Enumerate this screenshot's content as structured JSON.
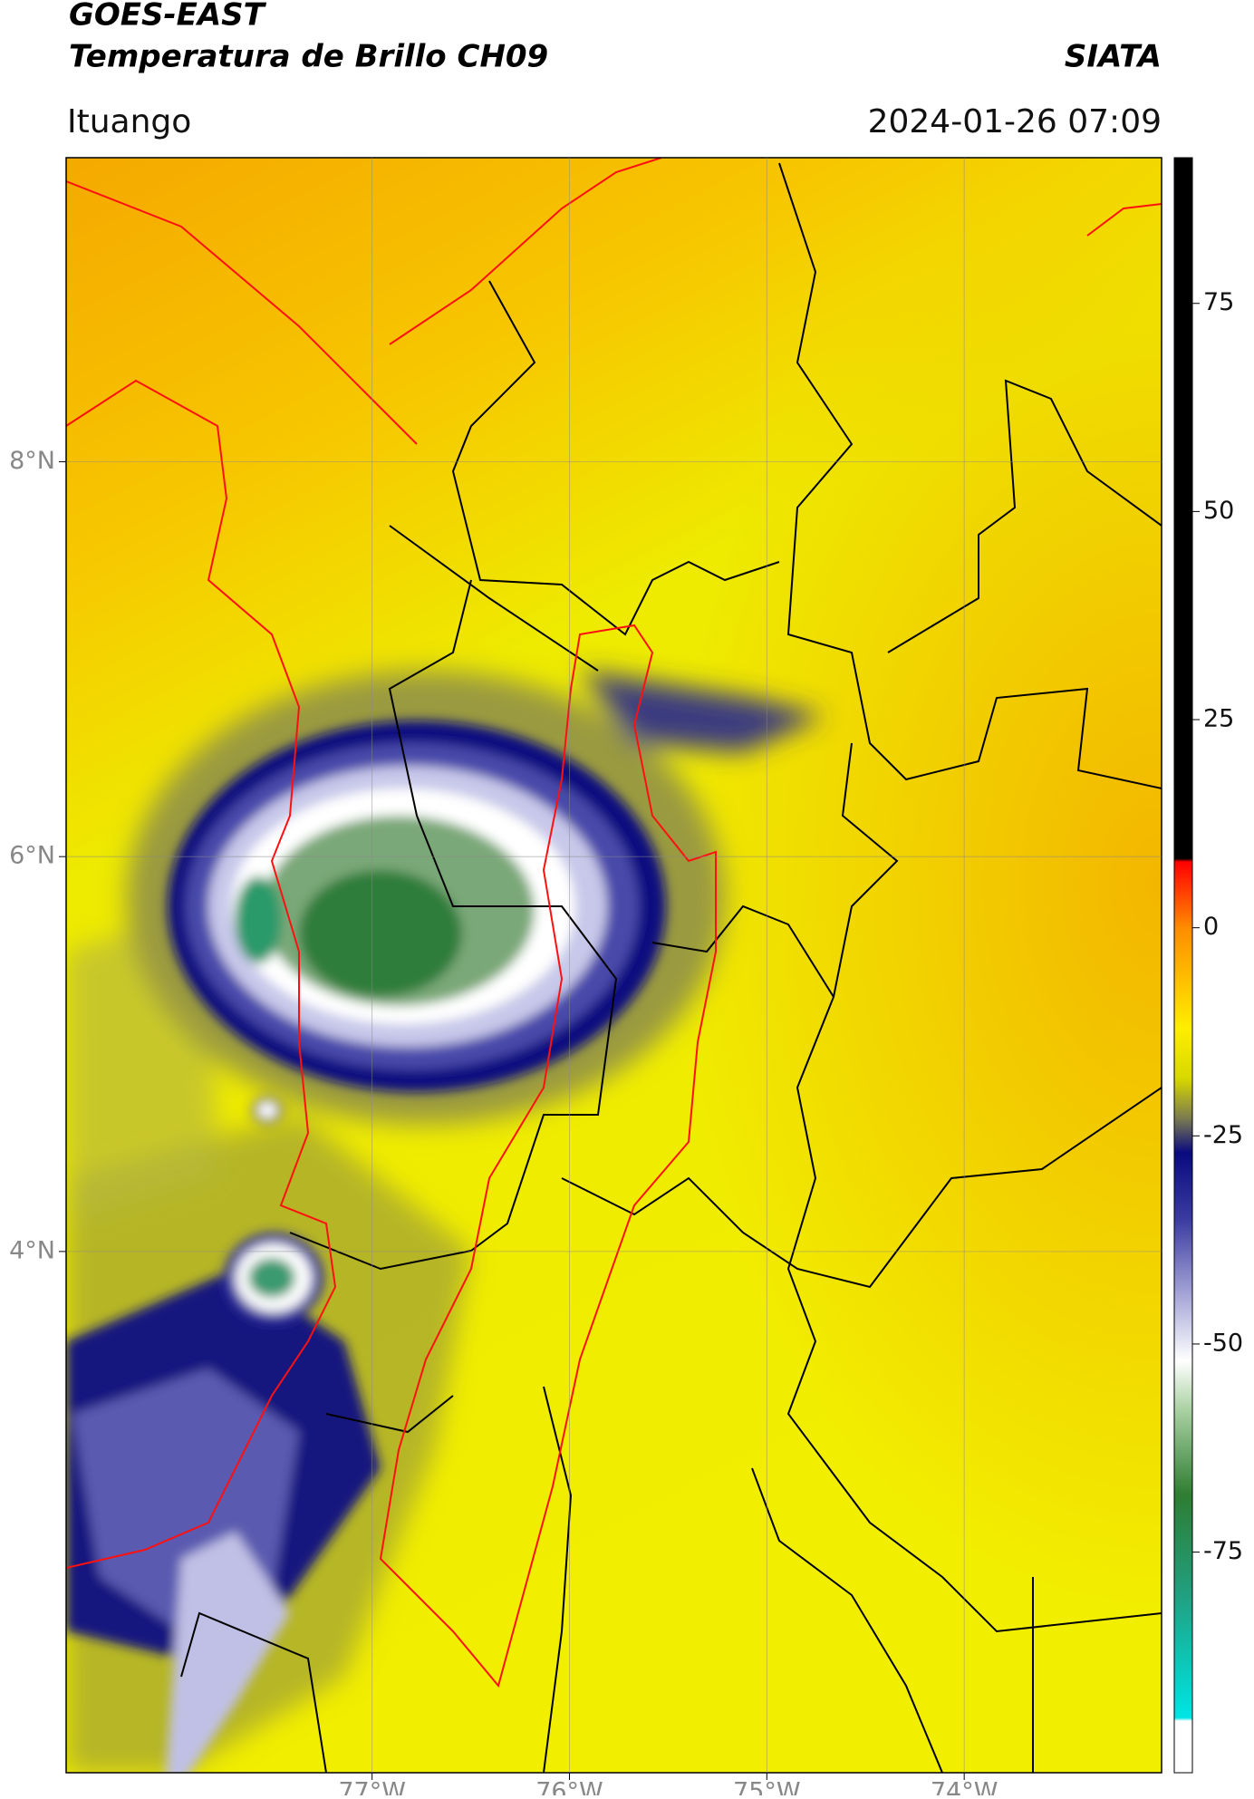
{
  "header": {
    "title": "GOES-EAST",
    "subtitle": "Temperatura de Brillo CH09",
    "brand": "SIATA",
    "location": "Ituango",
    "datetime": "2024-01-26 07:09"
  },
  "map": {
    "xlim": [
      -78.55,
      -73.0
    ],
    "ylim": [
      1.36,
      9.54
    ],
    "grid": true,
    "xticks": [
      {
        "value": -77,
        "label": "77°W"
      },
      {
        "value": -76,
        "label": "76°W"
      },
      {
        "value": -75,
        "label": "75°W"
      },
      {
        "value": -74,
        "label": "74°W"
      }
    ],
    "yticks": [
      {
        "value": 8,
        "label": "8°N"
      },
      {
        "value": 6,
        "label": "6°N"
      },
      {
        "value": 4,
        "label": "4°N"
      }
    ]
  },
  "colorbar": {
    "lim": [
      -101.5,
      92.5
    ],
    "ticks": [
      75,
      50,
      25,
      0,
      -25,
      -50,
      -75
    ]
  }
}
